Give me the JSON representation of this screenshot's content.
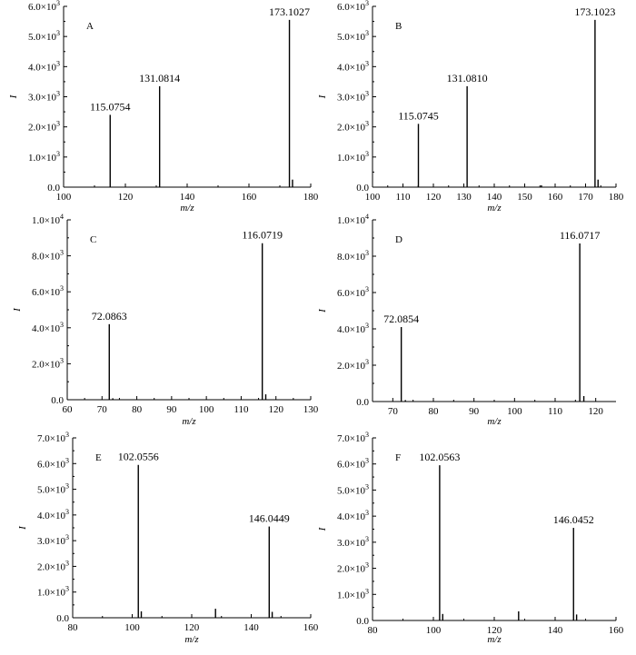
{
  "chart_data": [
    {
      "type": "bar",
      "panel": "A",
      "xlabel": "m/z",
      "ylabel": "I",
      "xlim": [
        100,
        180
      ],
      "ylim": [
        0,
        6000
      ],
      "xticks": [
        100,
        120,
        140,
        160,
        180
      ],
      "xtick_labels": [
        "100",
        "120",
        "140",
        "160",
        "180"
      ],
      "yticks": [
        0,
        1000,
        2000,
        3000,
        4000,
        5000,
        6000
      ],
      "ytick_labels": [
        {
          "mantissa": "0.0",
          "exp": ""
        },
        {
          "mantissa": "1.0×10",
          "exp": "3"
        },
        {
          "mantissa": "2.0×10",
          "exp": "3"
        },
        {
          "mantissa": "3.0×10",
          "exp": "3"
        },
        {
          "mantissa": "4.0×10",
          "exp": "3"
        },
        {
          "mantissa": "5.0×10",
          "exp": "3"
        },
        {
          "mantissa": "6.0×10",
          "exp": "3"
        }
      ],
      "peaks": [
        {
          "x": 115.0754,
          "y": 2400,
          "label": "115.0754"
        },
        {
          "x": 131.0814,
          "y": 3350,
          "label": "131.0814"
        },
        {
          "x": 173.1027,
          "y": 5550,
          "label": "173.1027"
        },
        {
          "x": 174.1,
          "y": 250,
          "label": ""
        }
      ]
    },
    {
      "type": "bar",
      "panel": "B",
      "xlabel": "m/z",
      "ylabel": "I",
      "xlim": [
        100,
        180
      ],
      "ylim": [
        0,
        6000
      ],
      "xticks": [
        100,
        110,
        120,
        130,
        140,
        150,
        160,
        170,
        180
      ],
      "xtick_labels": [
        "100",
        "110",
        "120",
        "130",
        "140",
        "150",
        "160",
        "170",
        "180"
      ],
      "yticks": [
        0,
        1000,
        2000,
        3000,
        4000,
        5000,
        6000
      ],
      "ytick_labels": [
        {
          "mantissa": "0.0",
          "exp": ""
        },
        {
          "mantissa": "1.0×10",
          "exp": "3"
        },
        {
          "mantissa": "2.0×10",
          "exp": "3"
        },
        {
          "mantissa": "3.0×10",
          "exp": "3"
        },
        {
          "mantissa": "4.0×10",
          "exp": "3"
        },
        {
          "mantissa": "5.0×10",
          "exp": "3"
        },
        {
          "mantissa": "6.0×10",
          "exp": "3"
        }
      ],
      "peaks": [
        {
          "x": 115.0745,
          "y": 2100,
          "label": "115.0745"
        },
        {
          "x": 131.081,
          "y": 3350,
          "label": "131.0810"
        },
        {
          "x": 173.1023,
          "y": 5550,
          "label": "173.1023"
        },
        {
          "x": 174.1,
          "y": 250,
          "label": ""
        },
        {
          "x": 155.5,
          "y": 60,
          "label": ""
        }
      ]
    },
    {
      "type": "bar",
      "panel": "C",
      "xlabel": "m/z",
      "ylabel": "I",
      "xlim": [
        60,
        130
      ],
      "ylim": [
        0,
        10000
      ],
      "xticks": [
        60,
        70,
        80,
        90,
        100,
        110,
        120,
        130
      ],
      "xtick_labels": [
        "60",
        "70",
        "80",
        "90",
        "100",
        "110",
        "120",
        "130"
      ],
      "yticks": [
        0,
        2000,
        4000,
        6000,
        8000,
        10000
      ],
      "ytick_labels": [
        {
          "mantissa": "0.0",
          "exp": ""
        },
        {
          "mantissa": "2.0×10",
          "exp": "3"
        },
        {
          "mantissa": "4.0×10",
          "exp": "3"
        },
        {
          "mantissa": "6.0×10",
          "exp": "3"
        },
        {
          "mantissa": "8.0×10",
          "exp": "3"
        },
        {
          "mantissa": "1.0×10",
          "exp": "4"
        }
      ],
      "peaks": [
        {
          "x": 72.0863,
          "y": 4200,
          "label": "72.0863"
        },
        {
          "x": 116.0719,
          "y": 8700,
          "label": "116.0719"
        },
        {
          "x": 117.07,
          "y": 300,
          "label": ""
        },
        {
          "x": 73.1,
          "y": 80,
          "label": ""
        }
      ]
    },
    {
      "type": "bar",
      "panel": "D",
      "xlabel": "m/z",
      "ylabel": "I",
      "xlim": [
        65,
        125
      ],
      "ylim": [
        0,
        10000
      ],
      "xticks": [
        70,
        80,
        90,
        100,
        110,
        120
      ],
      "xtick_labels": [
        "70",
        "80",
        "90",
        "100",
        "110",
        "120"
      ],
      "yticks": [
        0,
        2000,
        4000,
        6000,
        8000,
        10000
      ],
      "ytick_labels": [
        {
          "mantissa": "0.0",
          "exp": ""
        },
        {
          "mantissa": "2.0×10",
          "exp": "3"
        },
        {
          "mantissa": "4.0×10",
          "exp": "3"
        },
        {
          "mantissa": "6.0×10",
          "exp": "3"
        },
        {
          "mantissa": "8.0×10",
          "exp": "3"
        },
        {
          "mantissa": "1.0×10",
          "exp": "4"
        }
      ],
      "peaks": [
        {
          "x": 72.0854,
          "y": 4100,
          "label": "72.0854"
        },
        {
          "x": 116.0717,
          "y": 8700,
          "label": "116.0717"
        },
        {
          "x": 117.07,
          "y": 300,
          "label": ""
        },
        {
          "x": 73.1,
          "y": 80,
          "label": ""
        }
      ]
    },
    {
      "type": "bar",
      "panel": "E",
      "xlabel": "m/z",
      "ylabel": "I",
      "xlim": [
        80,
        160
      ],
      "ylim": [
        0,
        7000
      ],
      "xticks": [
        80,
        100,
        120,
        140,
        160
      ],
      "xtick_labels": [
        "80",
        "100",
        "120",
        "140",
        "160"
      ],
      "yticks": [
        0,
        1000,
        2000,
        3000,
        4000,
        5000,
        6000,
        7000
      ],
      "ytick_labels": [
        {
          "mantissa": "0.0",
          "exp": ""
        },
        {
          "mantissa": "1.0×10",
          "exp": "3"
        },
        {
          "mantissa": "2.0×10",
          "exp": "3"
        },
        {
          "mantissa": "3.0×10",
          "exp": "3"
        },
        {
          "mantissa": "4.0×10",
          "exp": "3"
        },
        {
          "mantissa": "5.0×10",
          "exp": "3"
        },
        {
          "mantissa": "6.0×10",
          "exp": "3"
        },
        {
          "mantissa": "7.0×10",
          "exp": "3"
        }
      ],
      "peaks": [
        {
          "x": 102.0556,
          "y": 5950,
          "label": "102.0556"
        },
        {
          "x": 103.06,
          "y": 250,
          "label": ""
        },
        {
          "x": 128.0,
          "y": 350,
          "label": ""
        },
        {
          "x": 146.0449,
          "y": 3550,
          "label": "146.0449"
        },
        {
          "x": 147.05,
          "y": 230,
          "label": ""
        }
      ]
    },
    {
      "type": "bar",
      "panel": "F",
      "xlabel": "m/z",
      "ylabel": "I",
      "xlim": [
        80,
        160
      ],
      "ylim": [
        0,
        7000
      ],
      "xticks": [
        80,
        100,
        120,
        140,
        160
      ],
      "xtick_labels": [
        "80",
        "100",
        "120",
        "140",
        "160"
      ],
      "yticks": [
        0,
        1000,
        2000,
        3000,
        4000,
        5000,
        6000,
        7000
      ],
      "ytick_labels": [
        {
          "mantissa": "0.0",
          "exp": ""
        },
        {
          "mantissa": "1.0×10",
          "exp": "3"
        },
        {
          "mantissa": "2.0×10",
          "exp": "3"
        },
        {
          "mantissa": "3.0×10",
          "exp": "3"
        },
        {
          "mantissa": "4.0×10",
          "exp": "3"
        },
        {
          "mantissa": "5.0×10",
          "exp": "3"
        },
        {
          "mantissa": "6.0×10",
          "exp": "3"
        },
        {
          "mantissa": "7.0×10",
          "exp": "3"
        }
      ],
      "peaks": [
        {
          "x": 102.0563,
          "y": 5950,
          "label": "102.0563"
        },
        {
          "x": 103.06,
          "y": 250,
          "label": ""
        },
        {
          "x": 128.0,
          "y": 350,
          "label": ""
        },
        {
          "x": 146.0452,
          "y": 3550,
          "label": "146.0452"
        },
        {
          "x": 147.05,
          "y": 230,
          "label": ""
        }
      ]
    }
  ]
}
